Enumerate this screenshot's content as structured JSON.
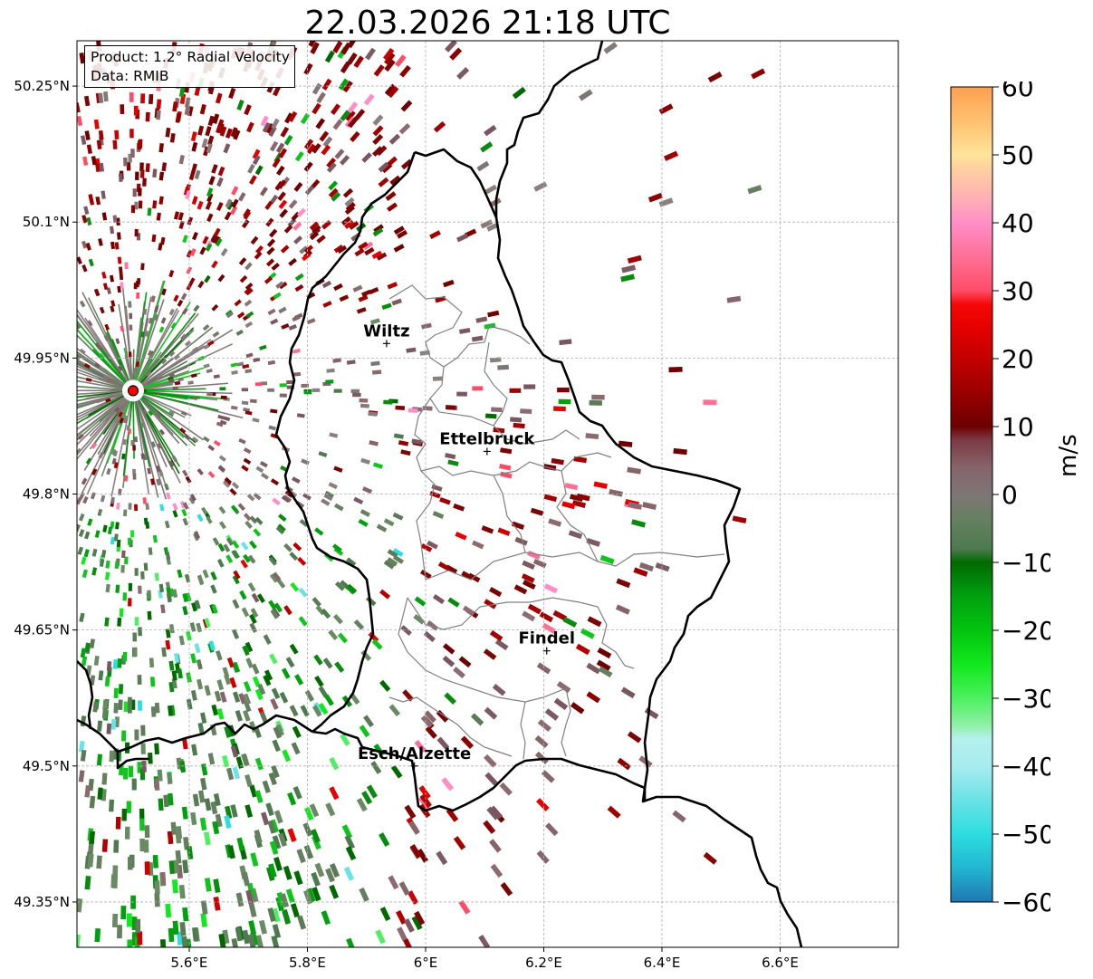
{
  "title": "22.03.2026 21:18 UTC",
  "info": {
    "product": "Product: 1.2° Radial Velocity",
    "data": "Data: RMIB"
  },
  "map": {
    "lat_ticks": [
      {
        "value": 50.25,
        "label": "50.25°N"
      },
      {
        "value": 50.1,
        "label": "50.1°N"
      },
      {
        "value": 49.95,
        "label": "49.95°N"
      },
      {
        "value": 49.8,
        "label": "49.8°N"
      },
      {
        "value": 49.65,
        "label": "49.65°N"
      },
      {
        "value": 49.5,
        "label": "49.5°N"
      },
      {
        "value": 49.35,
        "label": "49.35°N"
      }
    ],
    "lon_ticks": [
      {
        "value": 5.6,
        "label": "5.6°E"
      },
      {
        "value": 5.8,
        "label": "5.8°E"
      },
      {
        "value": 6.0,
        "label": "6°E"
      },
      {
        "value": 6.2,
        "label": "6.2°E"
      },
      {
        "value": 6.4,
        "label": "6.4°E"
      },
      {
        "value": 6.6,
        "label": "6.6°E"
      }
    ],
    "lon_range": [
      5.41,
      6.8
    ],
    "lat_range": [
      49.3,
      50.3
    ],
    "radar_site": {
      "lon": 5.505,
      "lat": 49.914
    },
    "cities": [
      {
        "name": "Wiltz",
        "lon": 5.934,
        "lat": 49.966
      },
      {
        "name": "Ettelbruck",
        "lon": 6.104,
        "lat": 49.847
      },
      {
        "name": "Findel",
        "lon": 6.205,
        "lat": 49.627
      },
      {
        "name": "Esch/Alzette",
        "lon": 5.981,
        "lat": 49.5
      }
    ],
    "colors": {
      "border": "#000000",
      "canton": "#808080",
      "grid": "#b0b0b0",
      "radar_site": "#ff0000",
      "fill_background": "#ffffff"
    }
  },
  "colorbar": {
    "label": "m/s",
    "min": -60,
    "max": 60,
    "ticks": [
      {
        "value": 60,
        "label": "60"
      },
      {
        "value": 50,
        "label": "50"
      },
      {
        "value": 40,
        "label": "40"
      },
      {
        "value": 30,
        "label": "30"
      },
      {
        "value": 20,
        "label": "20"
      },
      {
        "value": 10,
        "label": "10"
      },
      {
        "value": 0,
        "label": "0"
      },
      {
        "value": -10,
        "label": "−10"
      },
      {
        "value": -20,
        "label": "−20"
      },
      {
        "value": -30,
        "label": "−30"
      },
      {
        "value": -40,
        "label": "−40"
      },
      {
        "value": -50,
        "label": "−50"
      },
      {
        "value": -60,
        "label": "−60"
      }
    ],
    "stops": [
      {
        "value": -60,
        "color": "#1f77b4"
      },
      {
        "value": -55,
        "color": "#22b6d0"
      },
      {
        "value": -50,
        "color": "#2ddde0"
      },
      {
        "value": -45,
        "color": "#6ae2e6"
      },
      {
        "value": -40,
        "color": "#a7ecef"
      },
      {
        "value": -36,
        "color": "#b5f0ee"
      },
      {
        "value": -34,
        "color": "#90f0a8"
      },
      {
        "value": -30,
        "color": "#4cf060"
      },
      {
        "value": -25,
        "color": "#11e81d"
      },
      {
        "value": -20,
        "color": "#02c40e"
      },
      {
        "value": -15,
        "color": "#01a010"
      },
      {
        "value": -10,
        "color": "#006a00"
      },
      {
        "value": -8,
        "color": "#4e7a50"
      },
      {
        "value": -4,
        "color": "#64805f"
      },
      {
        "value": 0,
        "color": "#7e7676"
      },
      {
        "value": 4,
        "color": "#85646a"
      },
      {
        "value": 8,
        "color": "#7c3a45"
      },
      {
        "value": 10,
        "color": "#6e0000"
      },
      {
        "value": 15,
        "color": "#9a0000"
      },
      {
        "value": 20,
        "color": "#c40000"
      },
      {
        "value": 25,
        "color": "#e80000"
      },
      {
        "value": 28,
        "color": "#f50808"
      },
      {
        "value": 30,
        "color": "#ff4c68"
      },
      {
        "value": 35,
        "color": "#ff6f96"
      },
      {
        "value": 40,
        "color": "#ff8ec8"
      },
      {
        "value": 44,
        "color": "#ffb3b3"
      },
      {
        "value": 48,
        "color": "#ffd0a0"
      },
      {
        "value": 50,
        "color": "#ffe49a"
      },
      {
        "value": 55,
        "color": "#ffc070"
      },
      {
        "value": 60,
        "color": "#ffa050"
      }
    ]
  }
}
